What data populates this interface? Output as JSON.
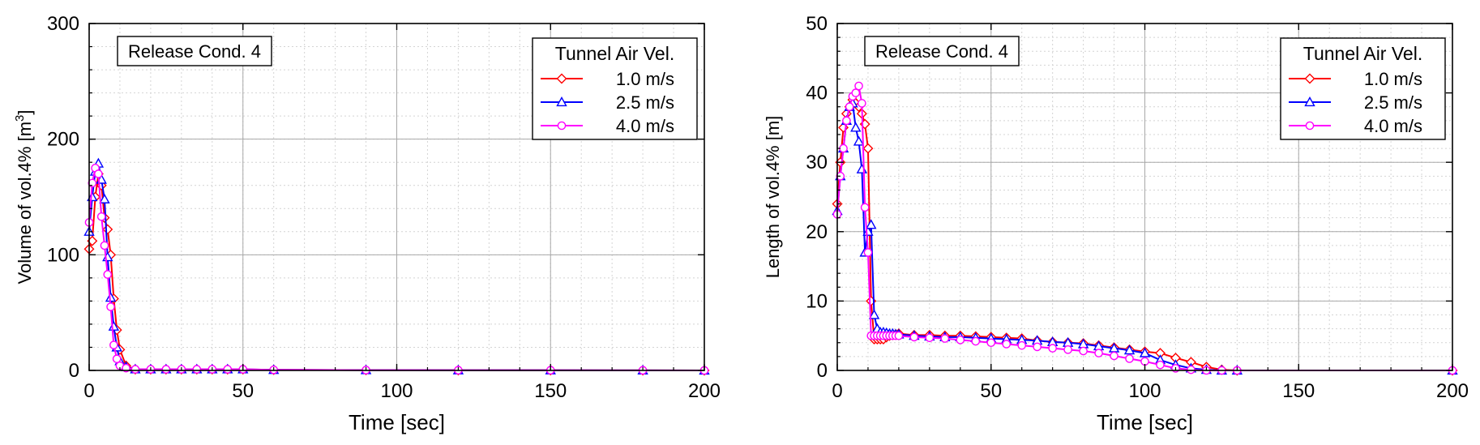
{
  "chart_data": [
    {
      "type": "line",
      "annotation": "Release Cond. 4",
      "xlabel": "Time [sec]",
      "ylabel_main": "Volume of vol.4% [m",
      "ylabel_sup": "3",
      "ylabel_end": "]",
      "xlim": [
        0,
        200
      ],
      "ylim": [
        0,
        300
      ],
      "xticks": [
        0,
        50,
        100,
        150,
        200
      ],
      "yticks": [
        0,
        100,
        200,
        300
      ],
      "grid": true,
      "legend_title": "Tunnel Air Vel.",
      "legend_position": "top-right",
      "series": [
        {
          "name": "1.0 m/s",
          "color": "#ff0000",
          "marker": "diamond",
          "x": [
            0,
            1,
            2,
            3,
            4,
            5,
            6,
            7,
            8,
            9,
            10,
            12,
            15,
            20,
            25,
            30,
            35,
            40,
            45,
            50,
            60,
            90,
            120,
            150,
            180,
            200
          ],
          "y": [
            105,
            112,
            150,
            170,
            160,
            132,
            122,
            100,
            62,
            35,
            18,
            4,
            1,
            1,
            1,
            1,
            1,
            1,
            1,
            1,
            0.5,
            0.3,
            0.2,
            0.2,
            0.1,
            0
          ]
        },
        {
          "name": "2.5 m/s",
          "color": "#0000ff",
          "marker": "triangle",
          "x": [
            0,
            1,
            2,
            3,
            4,
            5,
            6,
            7,
            8,
            9,
            10,
            12,
            15,
            20,
            25,
            30,
            35,
            40,
            45,
            50,
            60,
            90,
            120,
            150,
            180,
            200
          ],
          "y": [
            120,
            150,
            172,
            179,
            165,
            148,
            98,
            63,
            38,
            20,
            8,
            3,
            1,
            1,
            1,
            1,
            1,
            1,
            1,
            1,
            0.5,
            0.3,
            0.2,
            0.2,
            0.1,
            0
          ]
        },
        {
          "name": "4.0 m/s",
          "color": "#ff00ff",
          "marker": "circle",
          "x": [
            0,
            1,
            2,
            3,
            4,
            5,
            6,
            7,
            8,
            9,
            10,
            12,
            15,
            20,
            25,
            30,
            35,
            40,
            45,
            50,
            60,
            90,
            120,
            150,
            180,
            200
          ],
          "y": [
            128,
            162,
            175,
            170,
            133,
            108,
            83,
            55,
            22,
            10,
            4,
            2,
            1,
            1,
            1,
            1,
            1,
            1,
            1,
            1,
            0.5,
            0.3,
            0.2,
            0.2,
            0.1,
            0
          ]
        }
      ]
    },
    {
      "type": "line",
      "annotation": "Release Cond. 4",
      "xlabel": "Time [sec]",
      "ylabel_main": "Length of vol.4% [m]",
      "ylabel_sup": "",
      "ylabel_end": "",
      "xlim": [
        0,
        200
      ],
      "ylim": [
        0,
        50
      ],
      "xticks": [
        0,
        50,
        100,
        150,
        200
      ],
      "yticks": [
        0,
        10,
        20,
        30,
        40,
        50
      ],
      "grid": true,
      "legend_title": "Tunnel Air Vel.",
      "legend_position": "top-right",
      "series": [
        {
          "name": "1.0 m/s",
          "color": "#ff0000",
          "marker": "diamond",
          "x": [
            0,
            1,
            2,
            3,
            4,
            5,
            6,
            7,
            8,
            9,
            10,
            11,
            12,
            13,
            14,
            15,
            16,
            17,
            18,
            19,
            20,
            25,
            30,
            35,
            40,
            45,
            50,
            55,
            60,
            65,
            70,
            75,
            80,
            85,
            90,
            95,
            100,
            105,
            110,
            115,
            120,
            125,
            130,
            200
          ],
          "y": [
            24,
            30,
            35,
            37,
            38,
            39,
            38.5,
            38,
            37,
            35.5,
            32,
            10,
            4.5,
            4.5,
            4.5,
            4.5,
            4.8,
            5,
            5.1,
            5.2,
            5.3,
            5.1,
            5.1,
            5.0,
            5.0,
            4.9,
            4.8,
            4.7,
            4.6,
            4.3,
            4.1,
            4.0,
            3.9,
            3.6,
            3.3,
            3.0,
            2.7,
            2.5,
            1.8,
            1.2,
            0.5,
            0.1,
            0,
            0
          ]
        },
        {
          "name": "2.5 m/s",
          "color": "#0000ff",
          "marker": "triangle",
          "x": [
            0,
            1,
            2,
            3,
            4,
            5,
            6,
            7,
            8,
            9,
            10,
            11,
            12,
            13,
            14,
            15,
            16,
            17,
            18,
            19,
            20,
            25,
            30,
            35,
            40,
            45,
            50,
            55,
            60,
            65,
            70,
            75,
            80,
            85,
            90,
            95,
            100,
            105,
            110,
            115,
            120,
            125,
            130,
            200
          ],
          "y": [
            23,
            28,
            32,
            36,
            38,
            38.5,
            35,
            33,
            29,
            17,
            20,
            21,
            8,
            6,
            5.5,
            5.5,
            5.4,
            5.3,
            5.3,
            5.2,
            5.2,
            5.0,
            4.9,
            4.8,
            4.8,
            4.7,
            4.6,
            4.5,
            4.4,
            4.3,
            4.1,
            4.0,
            3.8,
            3.5,
            3.2,
            2.9,
            2.5,
            1.5,
            0.8,
            0.3,
            0.1,
            0,
            0,
            0
          ]
        },
        {
          "name": "4.0 m/s",
          "color": "#ff00ff",
          "marker": "circle",
          "x": [
            0,
            1,
            2,
            3,
            4,
            5,
            6,
            7,
            8,
            9,
            10,
            11,
            12,
            13,
            14,
            15,
            16,
            17,
            18,
            19,
            20,
            25,
            30,
            35,
            40,
            45,
            50,
            55,
            60,
            65,
            70,
            75,
            80,
            85,
            90,
            95,
            100,
            105,
            110,
            115,
            120,
            125,
            130,
            200
          ],
          "y": [
            22.5,
            28,
            32,
            36,
            38,
            39.5,
            40,
            41,
            38.5,
            23.5,
            17,
            5,
            5,
            5,
            5,
            5,
            5,
            5,
            5,
            5,
            5,
            4.8,
            4.7,
            4.6,
            4.4,
            4.2,
            4.0,
            3.8,
            3.6,
            3.4,
            3.2,
            3.0,
            2.8,
            2.5,
            2.1,
            1.7,
            1.3,
            0.8,
            0.3,
            0.1,
            0,
            0,
            0,
            0
          ]
        }
      ]
    }
  ]
}
